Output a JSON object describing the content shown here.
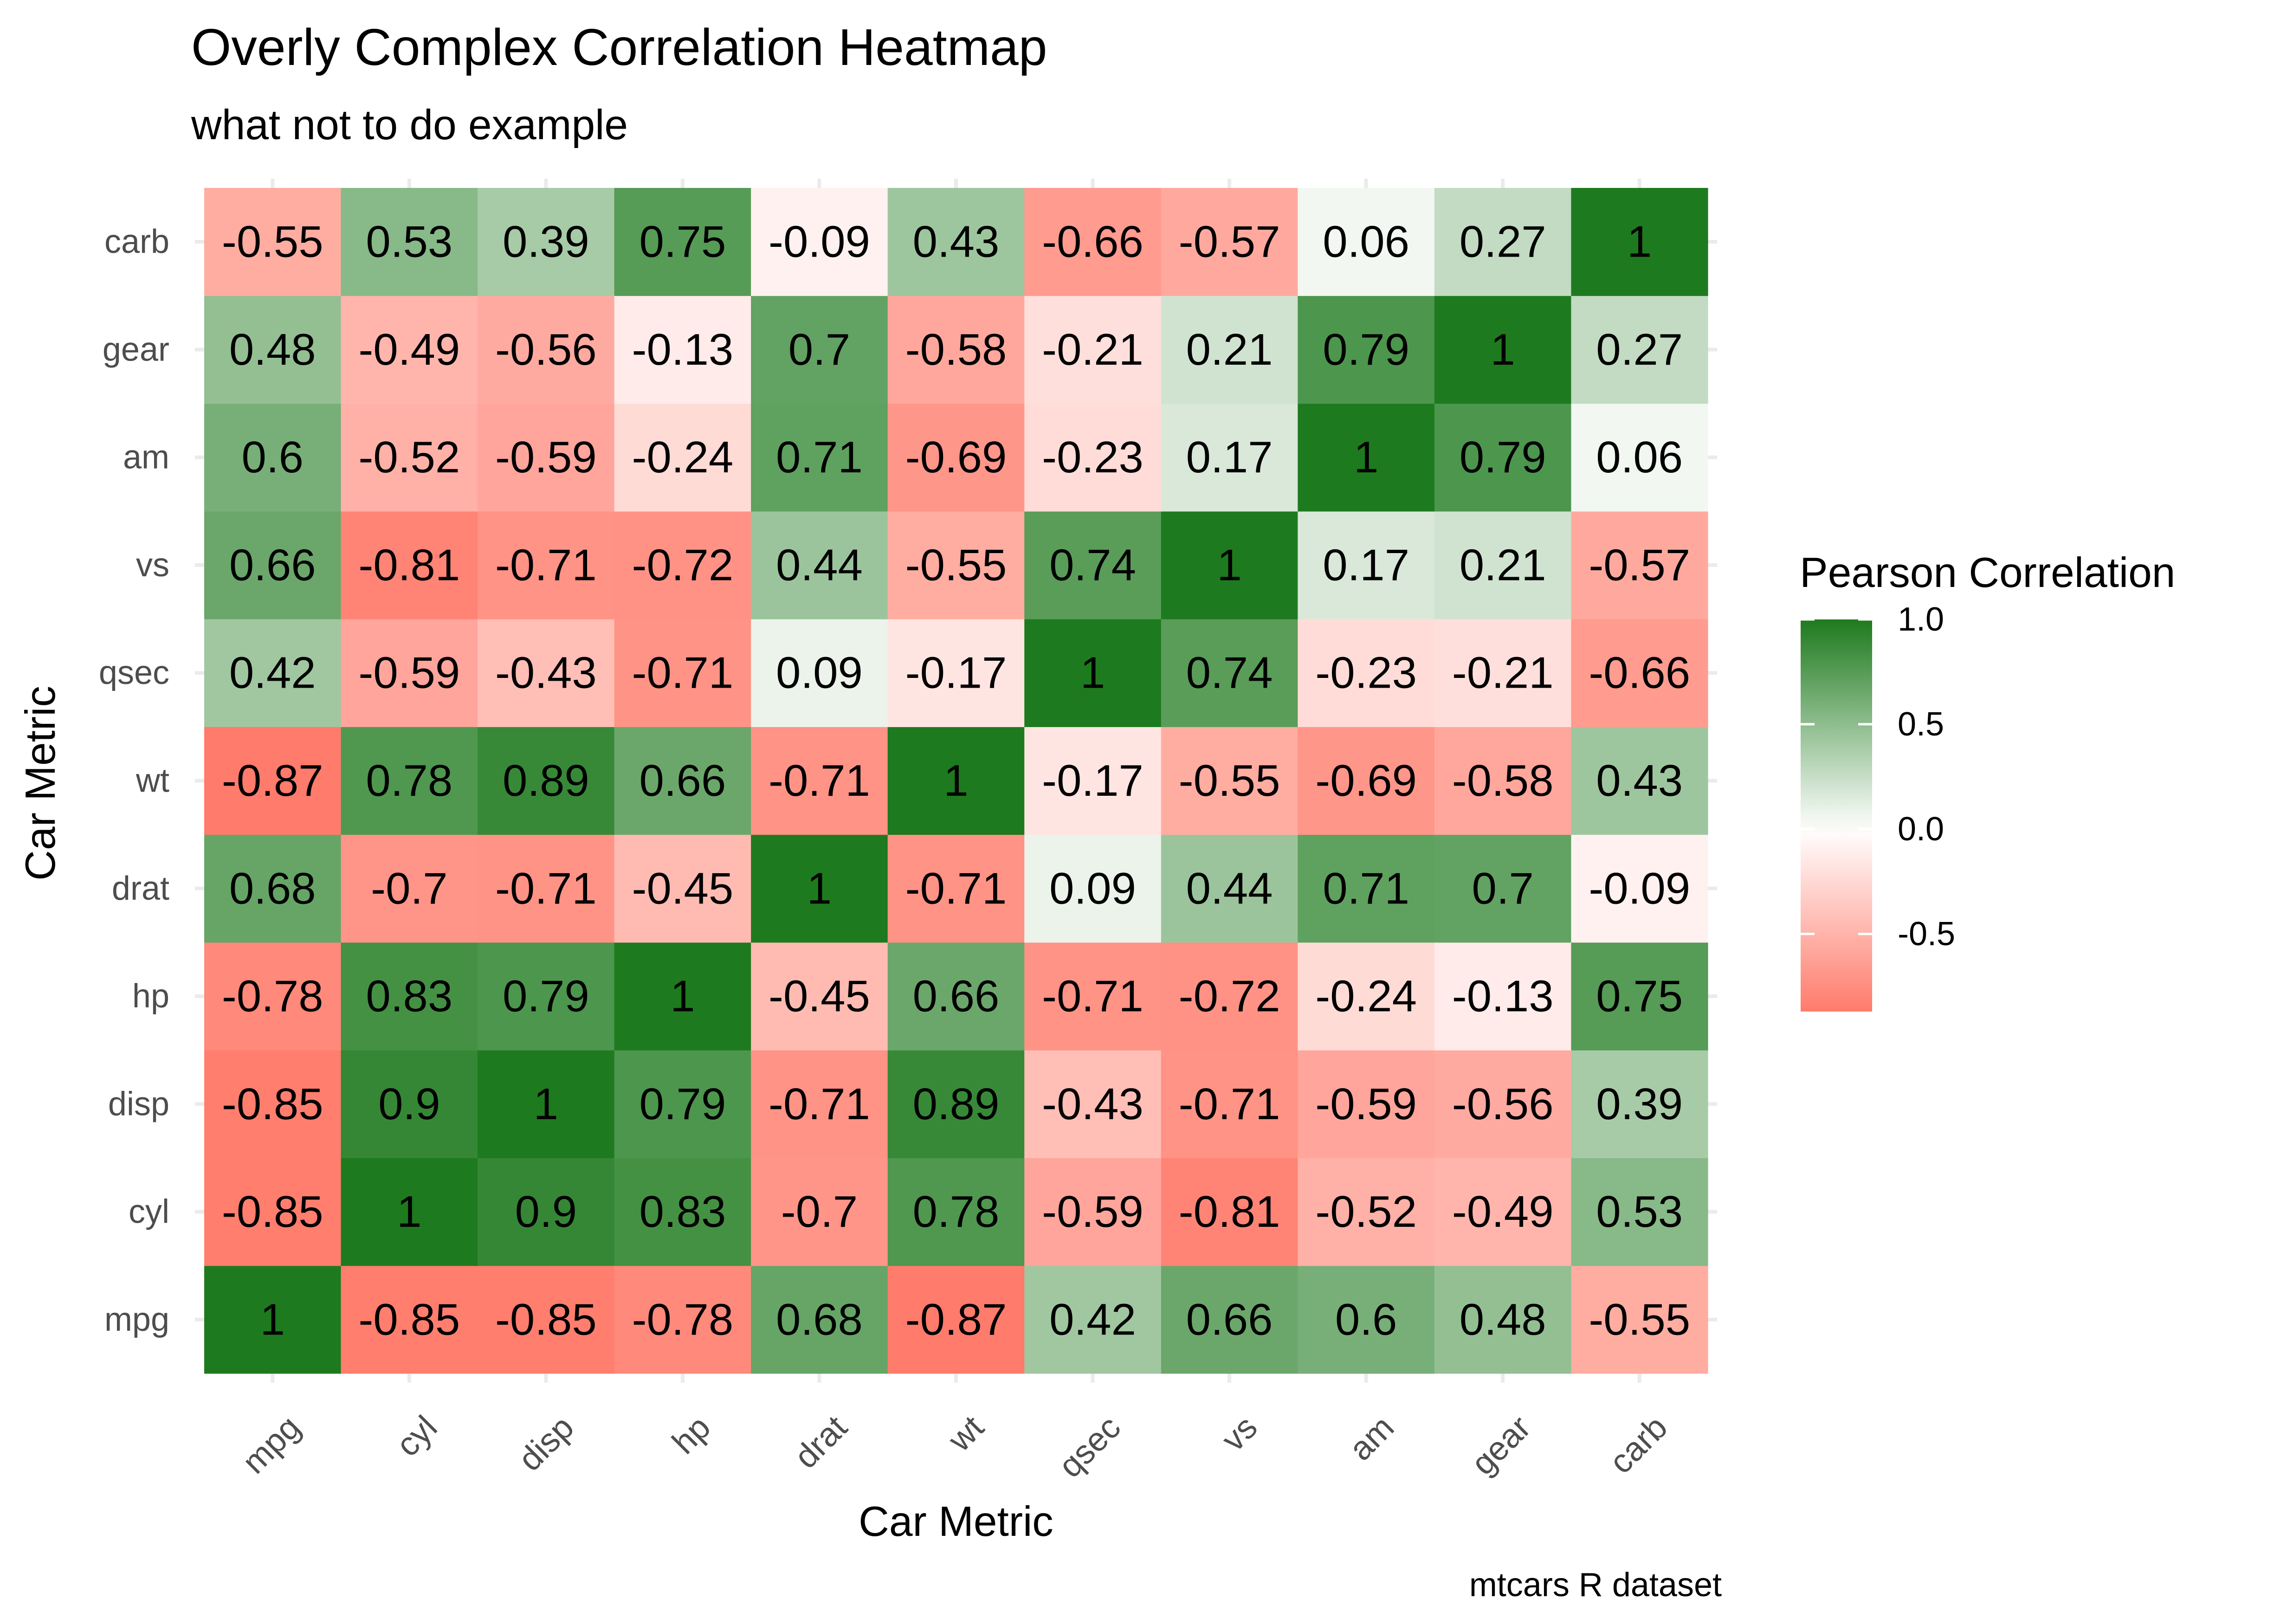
{
  "chart_data": {
    "type": "heatmap",
    "title": "Overly Complex Correlation Heatmap",
    "subtitle": "what not to do example",
    "xlabel": "Car Metric",
    "ylabel": "Car Metric",
    "caption": "mtcars R dataset",
    "x_categories": [
      "mpg",
      "cyl",
      "disp",
      "hp",
      "drat",
      "wt",
      "qsec",
      "vs",
      "am",
      "gear",
      "carb"
    ],
    "y_categories": [
      "mpg",
      "cyl",
      "disp",
      "hp",
      "drat",
      "wt",
      "qsec",
      "vs",
      "am",
      "gear",
      "carb"
    ],
    "matrix": [
      [
        1,
        -0.85,
        -0.85,
        -0.78,
        0.68,
        -0.87,
        0.42,
        0.66,
        0.6,
        0.48,
        -0.55
      ],
      [
        -0.85,
        1,
        0.9,
        0.83,
        -0.7,
        0.78,
        -0.59,
        -0.81,
        -0.52,
        -0.49,
        0.53
      ],
      [
        -0.85,
        0.9,
        1,
        0.79,
        -0.71,
        0.89,
        -0.43,
        -0.71,
        -0.59,
        -0.56,
        0.39
      ],
      [
        -0.78,
        0.83,
        0.79,
        1,
        -0.45,
        0.66,
        -0.71,
        -0.72,
        -0.24,
        -0.13,
        0.75
      ],
      [
        0.68,
        -0.7,
        -0.71,
        -0.45,
        1,
        -0.71,
        0.09,
        0.44,
        0.71,
        0.7,
        -0.09
      ],
      [
        -0.87,
        0.78,
        0.89,
        0.66,
        -0.71,
        1,
        -0.17,
        -0.55,
        -0.69,
        -0.58,
        0.43
      ],
      [
        0.42,
        -0.59,
        -0.43,
        -0.71,
        0.09,
        -0.17,
        1,
        0.74,
        -0.23,
        -0.21,
        -0.66
      ],
      [
        0.66,
        -0.81,
        -0.71,
        -0.72,
        0.44,
        -0.55,
        0.74,
        1,
        0.17,
        0.21,
        -0.57
      ],
      [
        0.6,
        -0.52,
        -0.59,
        -0.24,
        0.71,
        -0.69,
        -0.23,
        0.17,
        1,
        0.79,
        0.06
      ],
      [
        0.48,
        -0.49,
        -0.56,
        -0.13,
        0.7,
        -0.58,
        -0.21,
        0.21,
        0.79,
        1,
        0.27
      ],
      [
        -0.55,
        0.53,
        0.39,
        0.75,
        -0.09,
        0.43,
        -0.66,
        -0.57,
        0.06,
        0.27,
        1
      ]
    ],
    "legend": {
      "title": "Pearson Correlation",
      "ticks": [
        {
          "value": 1.0,
          "label": "1.0"
        },
        {
          "value": 0.5,
          "label": "0.5"
        },
        {
          "value": 0.0,
          "label": "0.0"
        },
        {
          "value": -0.5,
          "label": "-0.5"
        }
      ],
      "range": [
        -0.87,
        1.0
      ],
      "placement": "right"
    },
    "colors": {
      "low": "#ff7b6b",
      "mid": "#ffffff",
      "high": "#1e7a1e"
    },
    "grid": true
  }
}
